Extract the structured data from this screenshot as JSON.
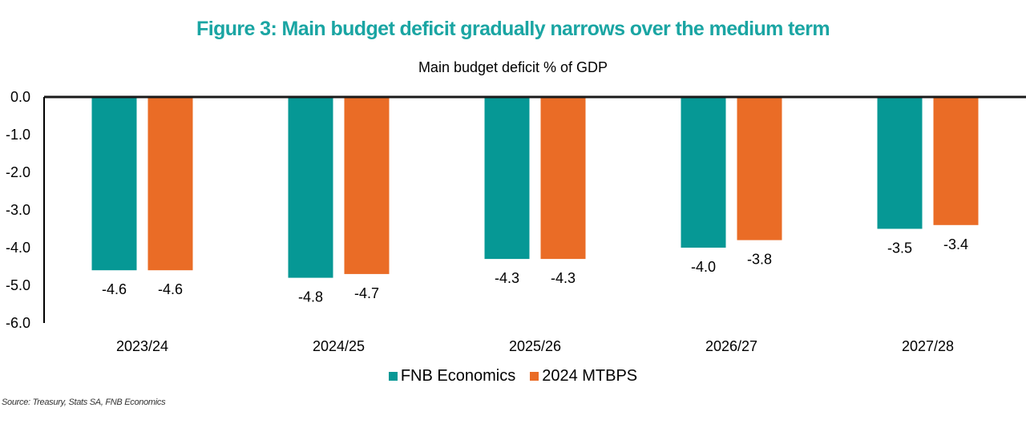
{
  "figure_title": "Figure 3: Main budget deficit gradually narrows over the medium term",
  "source": "Source: Treasury, Stats SA, FNB Economics",
  "chart_data": {
    "type": "bar",
    "title": "Main budget deficit % of GDP",
    "xlabel": "",
    "ylabel": "",
    "categories": [
      "2023/24",
      "2024/25",
      "2025/26",
      "2026/27",
      "2027/28"
    ],
    "series": [
      {
        "name": "FNB Economics",
        "color": "#069895",
        "values": [
          -4.6,
          -4.8,
          -4.3,
          -4.0,
          -3.5
        ]
      },
      {
        "name": "2024 MTBPS",
        "color": "#ea6c26",
        "values": [
          -4.6,
          -4.7,
          -4.3,
          -3.8,
          -3.4
        ]
      }
    ],
    "data_labels": [
      [
        "-4.6",
        "-4.8",
        "-4.3",
        "-4.0",
        "-3.5"
      ],
      [
        "-4.6",
        "-4.7",
        "-4.3",
        "-3.8",
        "-3.4"
      ]
    ],
    "ylim": [
      -6.0,
      0.0
    ],
    "yticks": [
      "0.0",
      "-1.0",
      "-2.0",
      "-3.0",
      "-4.0",
      "-5.0",
      "-6.0"
    ],
    "ytick_values": [
      0,
      -1,
      -2,
      -3,
      -4,
      -5,
      -6
    ],
    "grid": false,
    "legend_position": "bottom"
  }
}
